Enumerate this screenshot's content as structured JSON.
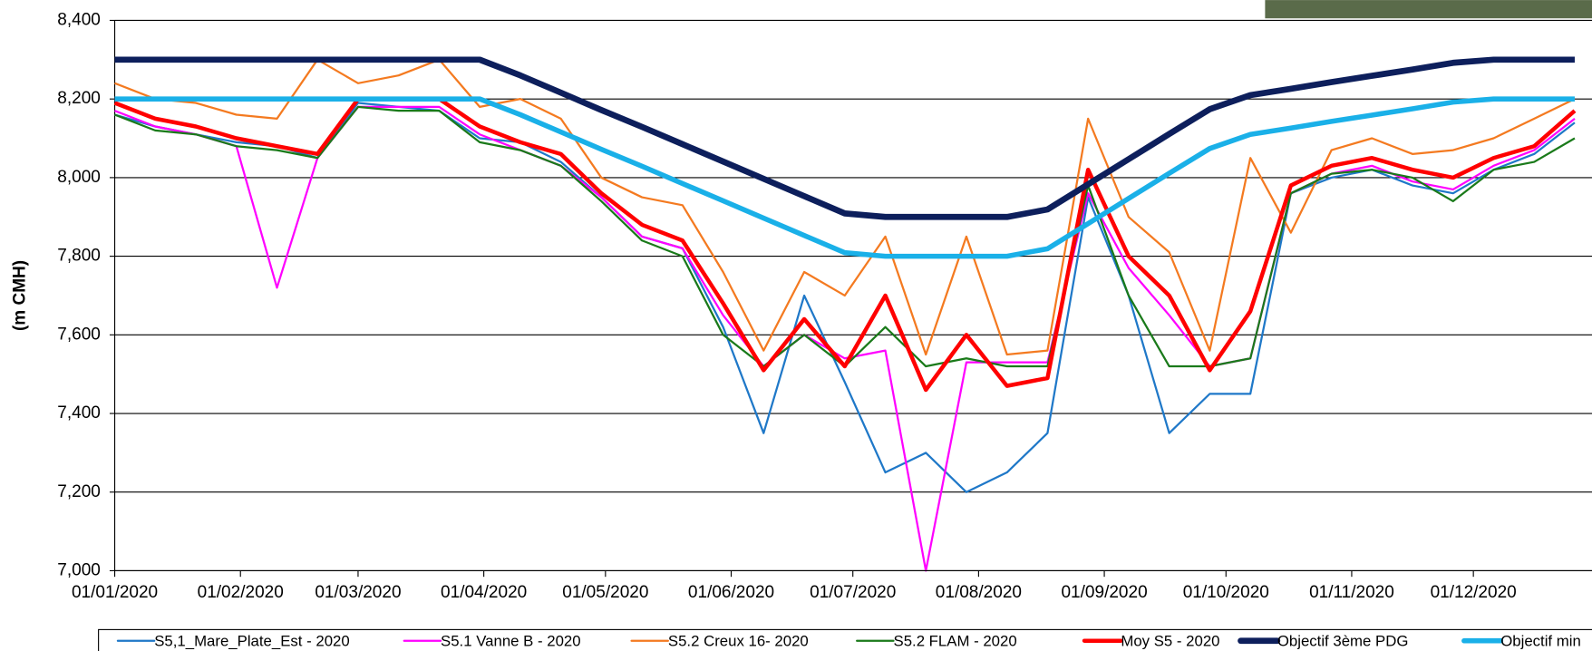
{
  "chart_data": {
    "type": "line",
    "y_label": "(m CMH)",
    "x": [
      "01/01/2020",
      "11/01/2020",
      "21/01/2020",
      "31/01/2020",
      "10/02/2020",
      "20/02/2020",
      "01/03/2020",
      "11/03/2020",
      "21/03/2020",
      "31/03/2020",
      "10/04/2020",
      "20/04/2020",
      "30/04/2020",
      "10/05/2020",
      "20/05/2020",
      "30/05/2020",
      "09/06/2020",
      "19/06/2020",
      "29/06/2020",
      "09/07/2020",
      "19/07/2020",
      "29/07/2020",
      "08/08/2020",
      "18/08/2020",
      "28/08/2020",
      "07/09/2020",
      "17/09/2020",
      "27/09/2020",
      "07/10/2020",
      "17/10/2020",
      "27/10/2020",
      "06/11/2020",
      "16/11/2020",
      "26/11/2020",
      "06/12/2020",
      "16/12/2020",
      "26/12/2020"
    ],
    "xlim": [
      "01/01/2020",
      "31/12/2020"
    ],
    "xticks": [
      "01/01/2020",
      "01/02/2020",
      "01/03/2020",
      "01/04/2020",
      "01/05/2020",
      "01/06/2020",
      "01/07/2020",
      "01/08/2020",
      "01/09/2020",
      "01/10/2020",
      "01/11/2020",
      "01/12/2020"
    ],
    "ylim": [
      7000,
      8400
    ],
    "yticks": [
      {
        "value": 7000,
        "label": "7,000"
      },
      {
        "value": 7200,
        "label": "7,200"
      },
      {
        "value": 7400,
        "label": "7,400"
      },
      {
        "value": 7600,
        "label": "7,600"
      },
      {
        "value": 7800,
        "label": "7,800"
      },
      {
        "value": 8000,
        "label": "8,000"
      },
      {
        "value": 8200,
        "label": "8,200"
      },
      {
        "value": 8400,
        "label": "8,400"
      }
    ],
    "grid": true,
    "legend": "bottom",
    "series": [
      {
        "name": "S5,1_Mare_Plate_Est - 2020",
        "color": "#1f78c8",
        "width": 2,
        "values": [
          8160,
          8130,
          8110,
          8090,
          8080,
          8050,
          8190,
          8180,
          8170,
          8100,
          8090,
          8040,
          7950,
          7850,
          7820,
          7620,
          7350,
          7700,
          7480,
          7250,
          7300,
          7200,
          7250,
          7350,
          7950,
          7700,
          7350,
          7450,
          7450,
          7960,
          8000,
          8020,
          7980,
          7960,
          8020,
          8060,
          8140
        ]
      },
      {
        "name": "S5.1 Vanne B - 2020",
        "color": "#ff00ff",
        "width": 2,
        "values": [
          8170,
          8130,
          8110,
          8080,
          7720,
          8050,
          8180,
          8180,
          8180,
          8110,
          8070,
          8030,
          7950,
          7850,
          7820,
          7650,
          7520,
          7600,
          7540,
          7560,
          7000,
          7530,
          7530,
          7530,
          7960,
          7770,
          7650,
          7520,
          7540,
          7960,
          8010,
          8030,
          7990,
          7970,
          8030,
          8070,
          8150
        ]
      },
      {
        "name": "S5.2 Creux 16- 2020",
        "color": "#f47a20",
        "width": 2,
        "values": [
          8240,
          8200,
          8190,
          8160,
          8150,
          8300,
          8240,
          8260,
          8300,
          8180,
          8200,
          8150,
          8000,
          7950,
          7930,
          7760,
          7560,
          7760,
          7700,
          7850,
          7550,
          7850,
          7550,
          7560,
          8150,
          7900,
          7810,
          7560,
          8050,
          7860,
          8070,
          8100,
          8060,
          8070,
          8100,
          8150,
          8200
        ]
      },
      {
        "name": "S5.2 FLAM - 2020",
        "color": "#1a7a1a",
        "width": 2,
        "values": [
          8160,
          8120,
          8110,
          8080,
          8070,
          8050,
          8180,
          8170,
          8170,
          8090,
          8070,
          8030,
          7940,
          7840,
          7800,
          7600,
          7520,
          7600,
          7520,
          7620,
          7520,
          7540,
          7520,
          7520,
          7980,
          7700,
          7520,
          7520,
          7540,
          7960,
          8010,
          8020,
          8000,
          7940,
          8020,
          8040,
          8100
        ]
      },
      {
        "name": "Moy S5 - 2020",
        "color": "#ff0000",
        "width": 4,
        "values": [
          8190,
          8150,
          8130,
          8100,
          8080,
          8060,
          8200,
          8200,
          8200,
          8130,
          8090,
          8060,
          7960,
          7880,
          7840,
          7680,
          7510,
          7640,
          7520,
          7700,
          7460,
          7600,
          7470,
          7490,
          8020,
          7800,
          7700,
          7510,
          7660,
          7980,
          8030,
          8050,
          8020,
          8000,
          8050,
          8080,
          8170
        ]
      },
      {
        "name": "Objectif 3ème PDG",
        "color": "#0d1f5c",
        "width": 6,
        "values": [
          8300,
          8300,
          8300,
          8300,
          8300,
          8300,
          8300,
          8300,
          8300,
          8300,
          8260,
          8216,
          8172,
          8129,
          8085,
          8041,
          7997,
          7953,
          7909,
          7900,
          7900,
          7900,
          7900,
          7919,
          7983,
          8047,
          8111,
          8174,
          8210,
          8226,
          8243,
          8259,
          8275,
          8292,
          8300,
          8300,
          8300
        ]
      },
      {
        "name": "Objectif min",
        "color": "#1ab0e8",
        "width": 5,
        "values": [
          8200,
          8200,
          8200,
          8200,
          8200,
          8200,
          8200,
          8200,
          8200,
          8200,
          8160,
          8116,
          8072,
          8029,
          7985,
          7941,
          7897,
          7853,
          7809,
          7800,
          7800,
          7800,
          7800,
          7819,
          7883,
          7947,
          8011,
          8074,
          8110,
          8126,
          8143,
          8159,
          8175,
          8192,
          8200,
          8200,
          8200
        ]
      }
    ]
  }
}
